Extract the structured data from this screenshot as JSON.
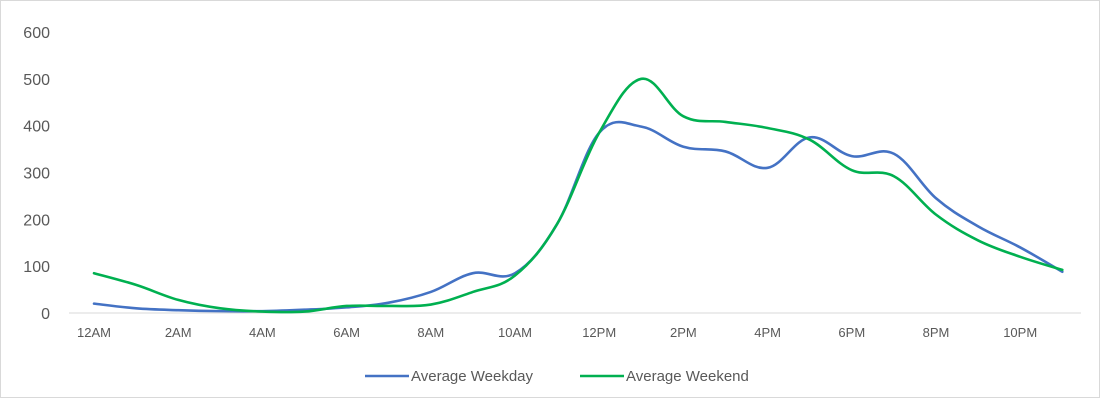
{
  "chart_data": {
    "type": "line",
    "title": "",
    "xlabel": "",
    "ylabel": "",
    "ylim": [
      0,
      600
    ],
    "yticks": [
      0,
      100,
      200,
      300,
      400,
      500,
      600
    ],
    "y_tick_labels": [
      "0",
      "100",
      "200",
      "300",
      "400",
      "500",
      "600"
    ],
    "grid": false,
    "legend_position": "bottom",
    "categories": [
      "12AM",
      "1AM",
      "2AM",
      "3AM",
      "4AM",
      "5AM",
      "6AM",
      "7AM",
      "8AM",
      "9AM",
      "10AM",
      "11AM",
      "12PM",
      "1PM",
      "2PM",
      "3PM",
      "4PM",
      "5PM",
      "6PM",
      "7PM",
      "8PM",
      "9PM",
      "10PM",
      "11PM"
    ],
    "x_tick_labels": [
      "12AM",
      "2AM",
      "4AM",
      "6AM",
      "8AM",
      "10AM",
      "12PM",
      "2PM",
      "4PM",
      "6PM",
      "8PM",
      "10PM"
    ],
    "series": [
      {
        "name": "Average Weekday",
        "color": "#4472c4",
        "values": [
          20,
          10,
          6,
          4,
          4,
          7,
          12,
          22,
          45,
          85,
          85,
          190,
          385,
          398,
          355,
          345,
          310,
          375,
          335,
          340,
          245,
          185,
          140,
          88
        ]
      },
      {
        "name": "Average Weekend",
        "color": "#00b050",
        "values": [
          85,
          60,
          28,
          10,
          3,
          3,
          15,
          15,
          18,
          45,
          80,
          190,
          385,
          500,
          420,
          408,
          395,
          370,
          305,
          292,
          210,
          155,
          120,
          92
        ]
      }
    ]
  }
}
